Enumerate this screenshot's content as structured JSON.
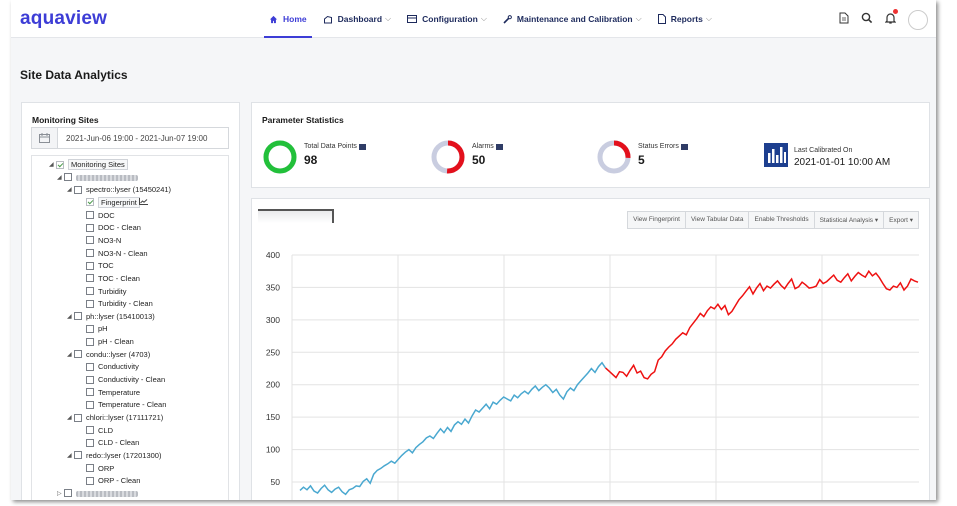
{
  "app": {
    "logo": "aquaview"
  },
  "nav": [
    {
      "label": "Home",
      "icon": "home-icon",
      "active": true
    },
    {
      "label": "Dashboard",
      "icon": "dashboard-icon",
      "caret": true
    },
    {
      "label": "Configuration",
      "icon": "configuration-icon",
      "caret": true
    },
    {
      "label": "Maintenance and Calibration",
      "icon": "wrench-icon",
      "caret": true
    },
    {
      "label": "Reports",
      "icon": "report-icon",
      "caret": true
    }
  ],
  "header_icons": [
    "document-icon",
    "search-icon",
    "bell-icon",
    "avatar"
  ],
  "page": {
    "title": "Site Data Analytics"
  },
  "sites": {
    "title": "Monitoring Sites",
    "date_range": "2021-Jun-06 19:00 - 2021-Jun-07 19:00",
    "tree": [
      {
        "label": "Monitoring Sites",
        "level": 0,
        "expanded": true,
        "checked": true,
        "boxed": true
      },
      {
        "label": "",
        "level": 1,
        "expanded": true,
        "blurred": true
      },
      {
        "label": "spectro::lyser (15450241)",
        "level": 2,
        "expanded": true
      },
      {
        "label": "Fingerprint",
        "level": 3,
        "checked": true,
        "chart_icon": true,
        "boxed": true
      },
      {
        "label": "DOC",
        "level": 3
      },
      {
        "label": "DOC - Clean",
        "level": 3
      },
      {
        "label": "NO3-N",
        "level": 3
      },
      {
        "label": "NO3-N - Clean",
        "level": 3
      },
      {
        "label": "TOC",
        "level": 3
      },
      {
        "label": "TOC - Clean",
        "level": 3
      },
      {
        "label": "Turbidity",
        "level": 3
      },
      {
        "label": "Turbidity - Clean",
        "level": 3
      },
      {
        "label": "ph::lyser (15410013)",
        "level": 2,
        "expanded": true
      },
      {
        "label": "pH",
        "level": 3
      },
      {
        "label": "pH - Clean",
        "level": 3
      },
      {
        "label": "condu::lyser (4703)",
        "level": 2,
        "expanded": true
      },
      {
        "label": "Conductivity",
        "level": 3
      },
      {
        "label": "Conductivity - Clean",
        "level": 3
      },
      {
        "label": "Temperature",
        "level": 3
      },
      {
        "label": "Temperature - Clean",
        "level": 3
      },
      {
        "label": "chlori::lyser (17111721)",
        "level": 2,
        "expanded": true
      },
      {
        "label": "CLD",
        "level": 3
      },
      {
        "label": "CLD - Clean",
        "level": 3
      },
      {
        "label": "redo::lyser (17201300)",
        "level": 2,
        "expanded": true
      },
      {
        "label": "ORP",
        "level": 3
      },
      {
        "label": "ORP - Clean",
        "level": 3
      },
      {
        "label": "",
        "level": 1,
        "expanded": false,
        "blurred": true
      }
    ]
  },
  "stats": {
    "title": "Parameter Statistics",
    "items": [
      {
        "label": "Total Data Points",
        "value": "98",
        "ring_fraction": 1.0,
        "ring_color": "#22c03a",
        "track": "#d0d4e4",
        "badge": true
      },
      {
        "label": "Alarms",
        "value": "50",
        "ring_fraction": 0.51,
        "ring_color": "#e3101c",
        "track": "#c9cde0",
        "badge": true
      },
      {
        "label": "Status Errors",
        "value": "5",
        "ring_fraction": 0.26,
        "ring_color": "#e3101c",
        "track": "#c9cde0",
        "badge": true
      },
      {
        "label": "Last Calibrated On",
        "value": "2021-01-01 10:00 AM",
        "icon": "bar-chart-icon"
      }
    ]
  },
  "toolbar": [
    "View Fingerprint",
    "View Tabular Data",
    "Enable Thresholds",
    "Statistical Analysis",
    "Export"
  ],
  "toolbar_carets": [
    false,
    false,
    false,
    true,
    true
  ],
  "chart_data": {
    "type": "line",
    "title": "",
    "xlabel": "",
    "ylabel": "",
    "ylim": [
      0,
      400
    ],
    "yticks": [
      50,
      100,
      150,
      200,
      250,
      300,
      350,
      400
    ],
    "grid": true,
    "colors": {
      "normal": "#4aa8d0",
      "alarm": "#ee1111"
    },
    "series": [
      {
        "values": [
          37,
          42,
          38,
          44,
          36,
          33,
          40,
          45,
          38,
          34,
          39,
          42,
          35,
          31,
          38,
          40,
          44,
          43,
          51,
          55,
          48,
          62,
          68,
          71,
          75,
          78,
          82,
          79,
          85,
          91,
          96,
          100,
          95,
          103,
          108,
          112,
          118,
          121,
          117,
          125,
          132,
          126,
          134,
          128,
          138,
          143,
          139,
          147,
          141,
          152,
          161,
          158,
          164,
          170,
          163,
          173,
          170,
          176,
          181,
          178,
          175,
          184,
          180,
          186,
          190,
          186,
          193,
          198,
          191,
          196,
          200,
          195,
          188,
          193,
          184,
          178,
          189,
          195,
          191,
          200,
          206,
          212,
          218,
          225,
          219,
          228,
          234,
          226,
          221,
          216,
          211,
          220,
          219,
          213,
          222,
          230,
          218,
          221,
          211,
          209,
          216,
          220,
          238,
          243,
          252,
          258,
          263,
          270,
          275,
          280,
          277,
          288,
          295,
          302,
          310,
          305,
          314,
          320,
          317,
          324,
          316,
          322,
          308,
          313,
          322,
          331,
          337,
          344,
          351,
          340,
          349,
          356,
          345,
          352,
          349,
          355,
          360,
          353,
          348,
          356,
          363,
          348,
          351,
          358,
          354,
          349,
          350,
          352,
          362,
          356,
          359,
          364,
          369,
          361,
          358,
          365,
          371,
          360,
          367,
          373,
          369,
          366,
          375,
          368,
          372,
          365,
          356,
          348,
          346,
          352,
          350,
          357,
          346,
          352,
          363,
          360,
          358
        ],
        "alarm_from_index": 87
      }
    ]
  }
}
